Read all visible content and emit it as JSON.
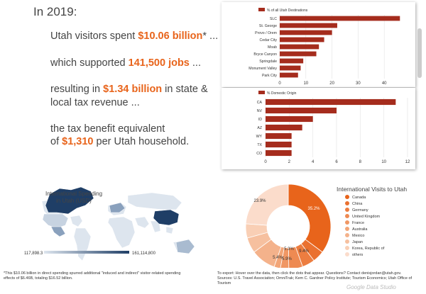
{
  "headline": {
    "year": "In 2019:",
    "s1_pre": "Utah visitors spent ",
    "s1_hl": "$10.06 billion",
    "s1_post": "* ...",
    "s2_pre": "which supported ",
    "s2_hl": "141,500 jobs",
    "s2_post": " ...",
    "s3_pre": "resulting in ",
    "s3_hl": "$1.34 billion",
    "s3_post": " in state &",
    "s3_line2": "local tax revenue ...",
    "s4_line1": "the tax benefit equivalent",
    "s4_pre": "of ",
    "s4_hl": "$1,310",
    "s4_post": " per Utah household."
  },
  "colors": {
    "accent": "#e8641b",
    "bar": "#a52c1d",
    "map_high": "#1f3e66",
    "map_low": "#dde5ee",
    "text": "#444444"
  },
  "map": {
    "title_line1": "International Spending",
    "title_line2": "in Utah (USD)",
    "min_label": "117,898.3",
    "max_label": "161,114,800"
  },
  "donut_labels": {
    "canada": "35.2%",
    "other": "23.9%",
    "mexico": "9.4%",
    "japan": "5.9%",
    "korea": "5.4%",
    "uk": "5.3%"
  },
  "footer": {
    "left_line1": "*This $10.06 billion in direct spending spurred additional \"induced and indirect\" visitor-related spending",
    "left_line2": "effects of $6.46B, totaling $16.52 billion.",
    "right_line1": "To export: Hover over the data, then click the dots that appear. Questions? Contact denisjordan@utah.gov.",
    "right_line2": "Sources: U.S. Travel Association; OmniTrak; Kem C. Gardner Policy Institute; Tourism Economics; Utah Office of Tourism",
    "brand": "Google Data Studio"
  },
  "chart_data": [
    {
      "type": "bar",
      "orientation": "horizontal",
      "legend": "% of all Utah Destinations",
      "legend_placement": "top-left",
      "categories": [
        "SLC",
        "St. George",
        "Provo / Orem",
        "Cedar City",
        "Moab",
        "Bryce Canyon",
        "Springdale",
        "Monument Valley",
        "Park City"
      ],
      "values": [
        46,
        22,
        20,
        17,
        15,
        14,
        9,
        8,
        7
      ],
      "xlim": [
        0,
        50
      ],
      "xticks": [
        "0",
        "10",
        "20",
        "30",
        "40"
      ],
      "grid": true
    },
    {
      "type": "bar",
      "orientation": "horizontal",
      "legend": "% Domestic Origin",
      "legend_placement": "top-left",
      "categories": [
        "CA",
        "NV",
        "ID",
        "AZ",
        "WY",
        "TX",
        "CO"
      ],
      "values": [
        11,
        6,
        4,
        3.1,
        2.2,
        2.2,
        2.2
      ],
      "xlim": [
        0,
        12
      ],
      "xticks": [
        "0",
        "2",
        "4",
        "6",
        "8",
        "10",
        "12"
      ],
      "grid": true
    },
    {
      "type": "pie",
      "donut": true,
      "title": "International Visits to Utah",
      "legend_placement": "right",
      "labels": [
        "Canada",
        "China",
        "Germany",
        "United Kingdom",
        "France",
        "Australia",
        "Mexico",
        "Japan",
        "Korea, Republic of",
        "others"
      ],
      "values": [
        35.2,
        4.5,
        4.8,
        5.3,
        3.2,
        2.4,
        9.4,
        5.9,
        5.4,
        23.9
      ],
      "colors": [
        "#e8641b",
        "#ea7130",
        "#ec7d40",
        "#ee8a52",
        "#f09764",
        "#f2a577",
        "#f4b28b",
        "#f6c09f",
        "#f9cfb5",
        "#fbdccb"
      ]
    }
  ]
}
